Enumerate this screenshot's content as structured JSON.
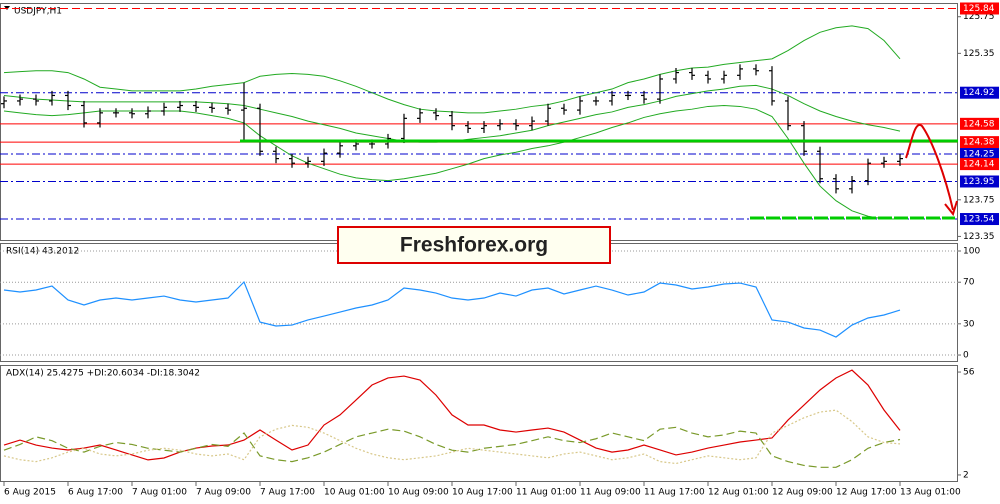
{
  "chart_data": [
    {
      "type": "candlestick",
      "title": "USDJPY,H1",
      "annotation": "Freshforex.org",
      "categories": [
        "6 Aug 2015",
        null,
        null,
        null,
        "6 Aug 17:00",
        null,
        null,
        null,
        "7 Aug 01:00",
        null,
        null,
        null,
        "7 Aug 09:00",
        null,
        null,
        null,
        "7 Aug 17:00",
        null,
        null,
        null,
        "10 Aug 01:00",
        null,
        null,
        null,
        "10 Aug 09:00",
        null,
        null,
        null,
        "10 Aug 17:00",
        null,
        null,
        null,
        "11 Aug 01:00",
        null,
        null,
        null,
        "11 Aug 09:00",
        null,
        null,
        null,
        "11 Aug 17:00",
        null,
        null,
        null,
        "12 Aug 01:00",
        null,
        null,
        null,
        "12 Aug 09:00",
        null,
        null,
        null,
        "12 Aug 17:00",
        null,
        null,
        null,
        "13 Aug 01:00"
      ],
      "open": [
        124.8,
        124.83,
        124.85,
        124.83,
        124.89,
        124.78,
        124.59,
        124.7,
        124.7,
        124.69,
        124.72,
        124.76,
        124.78,
        124.76,
        124.75,
        124.73,
        124.75,
        124.28,
        124.2,
        124.15,
        124.17,
        124.26,
        124.34,
        124.36,
        124.36,
        124.42,
        124.64,
        124.7,
        124.67,
        124.56,
        124.53,
        124.56,
        124.58,
        124.56,
        124.61,
        124.75,
        124.73,
        124.83,
        124.83,
        124.89,
        124.89,
        124.85,
        125.07,
        125.14,
        125.11,
        125.07,
        125.11,
        125.18,
        125.16,
        124.83,
        124.56,
        124.28,
        123.98,
        123.87,
        123.96,
        124.15,
        124.17
      ],
      "high": [
        124.88,
        124.9,
        124.9,
        124.94,
        124.94,
        124.83,
        124.75,
        124.75,
        124.75,
        124.77,
        124.81,
        124.83,
        124.83,
        124.81,
        124.8,
        125.03,
        124.8,
        124.33,
        124.25,
        124.22,
        124.31,
        124.39,
        124.41,
        124.41,
        124.47,
        124.69,
        124.75,
        124.75,
        124.72,
        124.61,
        124.61,
        124.63,
        124.63,
        124.66,
        124.8,
        124.8,
        124.88,
        124.88,
        124.94,
        124.94,
        124.94,
        125.12,
        125.19,
        125.19,
        125.16,
        125.16,
        125.23,
        125.23,
        125.21,
        124.88,
        124.61,
        124.33,
        124.03,
        124.01,
        124.2,
        124.22,
        124.25
      ],
      "low": [
        124.75,
        124.78,
        124.78,
        124.78,
        124.73,
        124.54,
        124.54,
        124.65,
        124.64,
        124.64,
        124.67,
        124.71,
        124.71,
        124.7,
        124.68,
        124.39,
        124.23,
        124.15,
        124.1,
        124.1,
        124.12,
        124.21,
        124.29,
        124.31,
        124.31,
        124.37,
        124.59,
        124.62,
        124.51,
        124.48,
        124.48,
        124.51,
        124.51,
        124.51,
        124.56,
        124.68,
        124.68,
        124.78,
        124.78,
        124.84,
        124.8,
        124.8,
        125.02,
        125.06,
        125.02,
        125.02,
        125.06,
        125.11,
        124.78,
        124.51,
        124.23,
        123.93,
        123.82,
        123.82,
        123.91,
        124.1,
        124.12
      ],
      "close": [
        124.83,
        124.85,
        124.83,
        124.89,
        124.78,
        124.59,
        124.7,
        124.7,
        124.69,
        124.72,
        124.76,
        124.78,
        124.76,
        124.75,
        124.73,
        124.75,
        124.28,
        124.2,
        124.15,
        124.17,
        124.26,
        124.34,
        124.36,
        124.36,
        124.42,
        124.64,
        124.7,
        124.67,
        124.56,
        124.53,
        124.56,
        124.58,
        124.56,
        124.61,
        124.75,
        124.73,
        124.83,
        124.83,
        124.89,
        124.89,
        124.85,
        125.07,
        125.14,
        125.11,
        125.07,
        125.11,
        125.18,
        125.16,
        124.83,
        124.56,
        124.28,
        123.98,
        123.87,
        123.96,
        124.15,
        124.17,
        124.2
      ],
      "color": "#000000",
      "overlays": [
        {
          "color": "#22aa22",
          "values": [
            125.14,
            125.15,
            125.16,
            125.16,
            125.14,
            125.07,
            124.98,
            124.96,
            124.94,
            124.94,
            124.94,
            124.94,
            124.96,
            124.99,
            125.01,
            125.03,
            125.1,
            125.12,
            125.13,
            125.12,
            125.1,
            125.05,
            124.99,
            124.92,
            124.85,
            124.79,
            124.74,
            124.72,
            124.71,
            124.7,
            124.7,
            124.72,
            124.74,
            124.77,
            124.79,
            124.83,
            124.88,
            124.92,
            124.96,
            125.03,
            125.07,
            125.12,
            125.16,
            125.19,
            125.2,
            125.23,
            125.25,
            125.27,
            125.29,
            125.38,
            125.49,
            125.58,
            125.63,
            125.65,
            125.62,
            125.49,
            125.29
          ]
        },
        {
          "color": "#22aa22",
          "values": [
            124.89,
            124.87,
            124.85,
            124.84,
            124.83,
            124.82,
            124.82,
            124.82,
            124.82,
            124.82,
            124.82,
            124.82,
            124.82,
            124.81,
            124.8,
            124.78,
            124.74,
            124.7,
            124.66,
            124.61,
            124.57,
            124.53,
            124.48,
            124.45,
            124.42,
            124.39,
            124.38,
            124.38,
            124.39,
            124.41,
            124.43,
            124.45,
            124.48,
            124.51,
            124.56,
            124.6,
            124.64,
            124.68,
            124.71,
            124.76,
            124.79,
            124.83,
            124.88,
            124.91,
            124.94,
            124.96,
            124.99,
            125.0,
            124.96,
            124.89,
            124.8,
            124.72,
            124.66,
            124.61,
            124.57,
            124.54,
            124.5
          ]
        },
        {
          "color": "#22aa22",
          "values": [
            124.72,
            124.7,
            124.68,
            124.67,
            124.68,
            124.7,
            124.72,
            124.72,
            124.72,
            124.72,
            124.72,
            124.72,
            124.7,
            124.67,
            124.64,
            124.59,
            124.45,
            124.34,
            124.23,
            124.15,
            124.09,
            124.03,
            123.99,
            123.97,
            123.96,
            123.98,
            124.01,
            124.04,
            124.09,
            124.14,
            124.2,
            124.24,
            124.27,
            124.31,
            124.34,
            124.38,
            124.43,
            124.48,
            124.54,
            124.59,
            124.65,
            124.69,
            124.72,
            124.74,
            124.77,
            124.78,
            124.77,
            124.74,
            124.66,
            124.42,
            124.15,
            123.9,
            123.74,
            123.63,
            123.57,
            123.54,
            123.54
          ]
        }
      ],
      "levels": [
        {
          "value": 125.84,
          "color": "#ff0000",
          "style": "dashed"
        },
        {
          "value": 124.92,
          "color": "#0000cc",
          "style": "dashdot"
        },
        {
          "value": 124.58,
          "color": "#ff0000",
          "style": "solid"
        },
        {
          "value": 124.38,
          "color": "#ff0000",
          "style": "solid"
        },
        {
          "value": 124.25,
          "color": "#0000cc",
          "style": "dashdot"
        },
        {
          "value": 124.14,
          "color": "#ff0000",
          "style": "solid"
        },
        {
          "value": 123.95,
          "color": "#0000cc",
          "style": "dashdot"
        },
        {
          "value": 123.54,
          "color": "#0000cc",
          "style": "dashdot"
        }
      ],
      "ylim": [
        123.3,
        125.9
      ],
      "yticks": [
        125.75,
        125.35,
        123.75,
        123.35
      ],
      "grid": false
    },
    {
      "type": "line",
      "title": "RSI(14) 43.2012",
      "lines": [
        {
          "color": "#1e90ff",
          "style": "solid",
          "values": [
            62.5,
            60.6,
            62.5,
            66.3,
            52.9,
            48.1,
            52.9,
            54.8,
            52.9,
            54.8,
            56.7,
            52.9,
            51.0,
            52.9,
            54.8,
            70.2,
            31.7,
            27.9,
            28.8,
            33.7,
            37.5,
            41.3,
            45.2,
            48.1,
            52.9,
            64.4,
            62.5,
            59.6,
            54.8,
            52.9,
            54.8,
            59.6,
            56.7,
            62.5,
            64.4,
            58.7,
            62.5,
            66.3,
            62.5,
            57.7,
            60.6,
            69.2,
            67.3,
            63.5,
            65.4,
            68.3,
            69.2,
            65.4,
            33.7,
            31.7,
            26.0,
            24.0,
            17.3,
            28.8,
            35.6,
            38.5,
            43.2
          ]
        }
      ],
      "ylim": [
        -6.7,
        107.7
      ],
      "yticks": [
        100,
        70,
        30,
        0
      ],
      "grid": true
    },
    {
      "type": "line",
      "title": "ADX(14) 25.4275 +DI:20.6034 -DI:18.3042",
      "lines": [
        {
          "color": "#dd0000",
          "style": "solid",
          "values": [
            17.7,
            20.3,
            17.7,
            16.1,
            15.1,
            16.1,
            17.7,
            15.1,
            12.5,
            9.9,
            10.9,
            14.0,
            16.1,
            17.2,
            17.7,
            20.3,
            25.6,
            20.3,
            15.1,
            17.7,
            28.2,
            33.5,
            41.3,
            49.2,
            52.9,
            53.9,
            51.8,
            43.9,
            33.5,
            28.2,
            28.2,
            25.6,
            24.5,
            25.6,
            26.6,
            24.5,
            20.3,
            16.1,
            14.0,
            15.1,
            17.7,
            15.1,
            12.5,
            14.0,
            16.1,
            17.7,
            19.3,
            20.3,
            21.4,
            30.8,
            38.7,
            46.6,
            52.9,
            57.0,
            49.2,
            36.1,
            25.4
          ]
        },
        {
          "color": "#7a9a2a",
          "style": "dashed",
          "values": [
            15,
            18,
            22,
            20,
            16,
            14,
            17,
            19,
            18,
            16,
            15,
            14,
            16,
            18,
            17,
            24,
            12,
            10,
            9,
            11,
            14,
            18,
            22,
            24,
            26,
            25,
            22,
            18,
            15,
            14,
            16,
            17,
            18,
            20,
            22,
            20,
            19,
            21,
            24,
            22,
            20,
            26,
            27,
            24,
            22,
            23,
            25,
            24,
            12,
            9,
            7,
            6,
            6,
            10,
            16,
            19,
            20.6
          ]
        },
        {
          "color": "#d8c88a",
          "style": "dotted",
          "values": [
            12,
            10,
            9,
            11,
            14,
            16,
            13,
            12,
            13,
            15,
            16,
            15,
            13,
            12,
            13,
            10,
            22,
            26,
            28,
            27,
            24,
            20,
            16,
            13,
            11,
            10,
            11,
            12,
            14,
            16,
            15,
            14,
            13,
            12,
            11,
            13,
            14,
            12,
            10,
            11,
            13,
            9,
            8,
            10,
            12,
            11,
            10,
            11,
            24,
            28,
            32,
            35,
            36,
            30,
            22,
            19,
            18.3
          ]
        }
      ],
      "ylim": [
        -1.7,
        59.7
      ],
      "yticks": [
        56,
        2
      ],
      "grid": false
    }
  ]
}
